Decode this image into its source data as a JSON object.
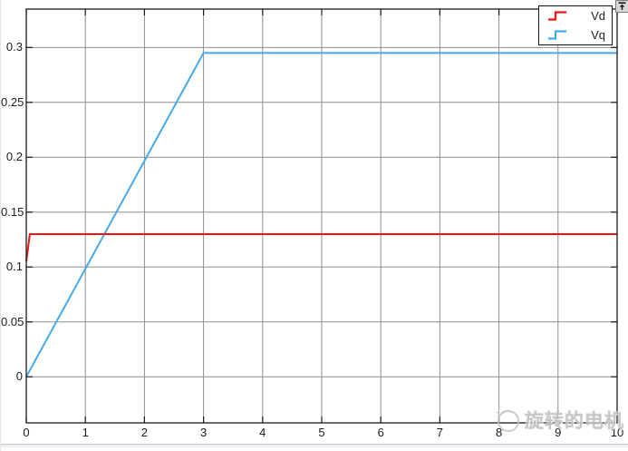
{
  "chart_data": {
    "type": "line",
    "title": "",
    "xlabel": "",
    "ylabel": "",
    "xlim": [
      0,
      10
    ],
    "ylim": [
      -0.042,
      0.335
    ],
    "x_ticks": [
      0,
      1,
      2,
      3,
      4,
      5,
      6,
      7,
      8,
      9,
      10
    ],
    "x_tick_labels": [
      "0",
      "1",
      "2",
      "3",
      "4",
      "5",
      "6",
      "7",
      "8",
      "9",
      "10"
    ],
    "y_ticks": [
      0,
      0.05,
      0.1,
      0.15,
      0.2,
      0.25,
      0.3
    ],
    "y_tick_labels": [
      "0",
      "0.05",
      "0.1",
      "0.15",
      "0.2",
      "0.25",
      "0.3"
    ],
    "grid": true,
    "grid_color": "#8f8f8f",
    "axis_color": "#1a1a1a",
    "legend_position": "top-right",
    "series": [
      {
        "name": "Vd",
        "color": "#f01414",
        "points": [
          [
            0,
            0.105
          ],
          [
            0.06,
            0.13
          ],
          [
            10,
            0.13
          ]
        ]
      },
      {
        "name": "Vq",
        "color": "#47a9ea",
        "points": [
          [
            0,
            0
          ],
          [
            3,
            0.295
          ],
          [
            10,
            0.295
          ]
        ]
      }
    ]
  },
  "legend": {
    "items": [
      {
        "label": "Vd",
        "color": "#f01414"
      },
      {
        "label": "Vq",
        "color": "#47a9ea"
      }
    ]
  },
  "watermark": {
    "text": "旋转的电机"
  },
  "icons": {
    "dock_button": "dock-up-arrow",
    "watermark_logo": "circular-logo",
    "legend_sample": "step-line"
  }
}
